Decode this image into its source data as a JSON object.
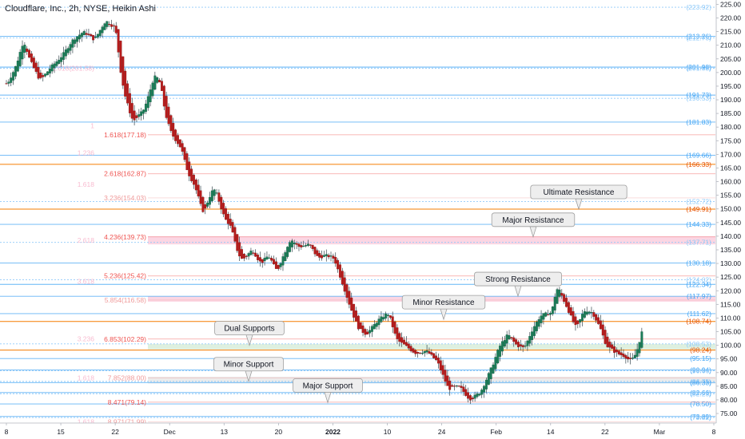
{
  "title": "Cloudflare, Inc., 2h, NYSE, Heikin Ashi",
  "chart_data": {
    "type": "candlestick",
    "chart_style": "Heikin Ashi",
    "symbol": "Cloudflare, Inc.",
    "interval": "2h",
    "exchange": "NYSE",
    "y_axis_side": "right",
    "ylim": [
      71.5,
      226
    ],
    "y_ticks": [
      75,
      80,
      85,
      90,
      95,
      100,
      105,
      110,
      115,
      120,
      125,
      130,
      135,
      140,
      145,
      150,
      155,
      160,
      165,
      170,
      175,
      180,
      185,
      190,
      195,
      200,
      205,
      210,
      215,
      220,
      225
    ],
    "x_ticks": [
      {
        "label": "8",
        "t": 0
      },
      {
        "label": "15",
        "t": 1
      },
      {
        "label": "22",
        "t": 2
      },
      {
        "label": "Dec",
        "t": 3
      },
      {
        "label": "13",
        "t": 4
      },
      {
        "label": "20",
        "t": 5
      },
      {
        "label": "2022",
        "t": 6
      },
      {
        "label": "10",
        "t": 7
      },
      {
        "label": "24",
        "t": 8
      },
      {
        "label": "Feb",
        "t": 9
      },
      {
        "label": "14",
        "t": 10
      },
      {
        "label": "22",
        "t": 11
      },
      {
        "label": "Mar",
        "t": 12
      },
      {
        "label": "8",
        "t": 13
      }
    ],
    "price_path": [
      [
        0.0,
        196
      ],
      [
        0.15,
        202
      ],
      [
        0.3,
        212
      ],
      [
        0.4,
        205
      ],
      [
        0.6,
        197
      ],
      [
        0.8,
        202
      ],
      [
        1.0,
        206
      ],
      [
        1.2,
        212
      ],
      [
        1.4,
        215
      ],
      [
        1.6,
        212
      ],
      [
        1.8,
        219
      ],
      [
        2.0,
        216
      ],
      [
        2.05,
        204
      ],
      [
        2.15,
        192
      ],
      [
        2.3,
        182
      ],
      [
        2.5,
        186
      ],
      [
        2.6,
        192
      ],
      [
        2.7,
        199
      ],
      [
        2.8,
        197
      ],
      [
        2.9,
        185
      ],
      [
        3.0,
        178
      ],
      [
        3.2,
        172
      ],
      [
        3.3,
        164
      ],
      [
        3.45,
        158
      ],
      [
        3.6,
        148
      ],
      [
        3.7,
        154
      ],
      [
        3.8,
        158
      ],
      [
        3.9,
        152
      ],
      [
        4.0,
        146
      ],
      [
        4.1,
        144
      ],
      [
        4.2,
        136
      ],
      [
        4.3,
        131
      ],
      [
        4.5,
        135
      ],
      [
        4.65,
        130
      ],
      [
        4.8,
        133
      ],
      [
        4.95,
        127
      ],
      [
        5.05,
        132
      ],
      [
        5.2,
        139
      ],
      [
        5.35,
        136
      ],
      [
        5.55,
        137
      ],
      [
        5.7,
        132
      ],
      [
        5.85,
        133
      ],
      [
        6.0,
        132
      ],
      [
        6.2,
        120
      ],
      [
        6.3,
        114
      ],
      [
        6.45,
        106
      ],
      [
        6.6,
        104
      ],
      [
        6.8,
        109
      ],
      [
        7.0,
        112
      ],
      [
        7.15,
        102
      ],
      [
        7.3,
        100
      ],
      [
        7.5,
        97
      ],
      [
        7.7,
        98
      ],
      [
        7.9,
        94
      ],
      [
        8.1,
        84
      ],
      [
        8.3,
        85
      ],
      [
        8.5,
        80
      ],
      [
        8.7,
        83
      ],
      [
        8.9,
        92
      ],
      [
        9.05,
        100
      ],
      [
        9.2,
        104
      ],
      [
        9.35,
        100
      ],
      [
        9.5,
        99
      ],
      [
        9.65,
        106
      ],
      [
        9.8,
        111
      ],
      [
        10.0,
        112
      ],
      [
        10.1,
        122
      ],
      [
        10.3,
        113
      ],
      [
        10.45,
        106
      ],
      [
        10.6,
        113
      ],
      [
        10.75,
        112
      ],
      [
        10.9,
        106
      ],
      [
        11.0,
        100
      ],
      [
        11.2,
        97
      ],
      [
        11.35,
        96
      ],
      [
        11.45,
        94
      ],
      [
        11.55,
        97
      ],
      [
        11.7,
        108
      ]
    ],
    "fib_levels": [
      {
        "label": "1.618(177.18)",
        "value": 177.18,
        "color": "#ef5350"
      },
      {
        "label": "2.618(162.87)",
        "value": 162.87,
        "color": "#ef5350"
      },
      {
        "label": "3.236(154.03)",
        "value": 154.03,
        "color": "#ef9a9a"
      },
      {
        "label": "4.236(139.73)",
        "value": 139.73,
        "color": "#ef5350"
      },
      {
        "label": "5.236(125.42)",
        "value": 125.42,
        "color": "#ef5350"
      },
      {
        "label": "5.854(116.58)",
        "value": 116.58,
        "color": "#ef9a9a"
      },
      {
        "label": "6.853(102.29)",
        "value": 102.29,
        "color": "#ef5350"
      },
      {
        "label": "7.852(88.00)",
        "value": 88.0,
        "color": "#ef9a9a"
      },
      {
        "label": "8.471(79.14)",
        "value": 79.14,
        "color": "#ef5350"
      },
      {
        "label": "8.971(71.99)",
        "value": 71.99,
        "color": "#ef9a9a"
      }
    ],
    "fib_faint_labels": [
      {
        "label": "1.618(201.58)",
        "value": 201.58
      },
      {
        "label": "1",
        "value": 180.5
      },
      {
        "label": "1.236",
        "value": 170.5
      },
      {
        "label": "1.618",
        "value": 159.0
      },
      {
        "label": "2.618",
        "value": 138.5
      },
      {
        "label": "3.618",
        "value": 123.5
      },
      {
        "label": "3.236",
        "value": 102.3
      },
      {
        "label": "1.618",
        "value": 88.0
      },
      {
        "label": "1.618",
        "value": 72.0
      }
    ],
    "horizontal_lines": [
      {
        "label": "(223.92)",
        "value": 223.92,
        "color": "#90caf9"
      },
      {
        "label": "(213.26)",
        "value": 213.26,
        "color": "#64b5f6"
      },
      {
        "label": "(212.73)",
        "value": 212.73,
        "color": "#90caf9"
      },
      {
        "label": "(201.98)",
        "value": 201.98,
        "color": "#42a5f5"
      },
      {
        "label": "(201.53)",
        "value": 201.53,
        "color": "#90caf9"
      },
      {
        "label": "(191.73)",
        "value": 191.73,
        "color": "#64b5f6"
      },
      {
        "label": "(190.53)",
        "value": 190.53,
        "color": "#90caf9"
      },
      {
        "label": "(181.83)",
        "value": 181.83,
        "color": "#64b5f6"
      },
      {
        "label": "(169.66)",
        "value": 169.66,
        "color": "#64b5f6"
      },
      {
        "label": "(166.33)",
        "value": 166.33,
        "color": "#f57c00"
      },
      {
        "label": "(152.72)",
        "value": 152.72,
        "color": "#90caf9"
      },
      {
        "label": "(149.91)",
        "value": 149.91,
        "color": "#f57c00"
      },
      {
        "label": "(144.33)",
        "value": 144.33,
        "color": "#64b5f6"
      },
      {
        "label": "(137.71)",
        "value": 137.71,
        "color": "#90caf9"
      },
      {
        "label": "(130.18)",
        "value": 130.18,
        "color": "#64b5f6"
      },
      {
        "label": "(124.02)",
        "value": 124.02,
        "color": "#90caf9"
      },
      {
        "label": "(122.34)",
        "value": 122.34,
        "color": "#64b5f6"
      },
      {
        "label": "(117.97)",
        "value": 117.97,
        "color": "#64b5f6"
      },
      {
        "label": "(111.62)",
        "value": 111.62,
        "color": "#64b5f6"
      },
      {
        "label": "(108.74)",
        "value": 108.74,
        "color": "#f57c00"
      },
      {
        "label": "(100.53)",
        "value": 100.53,
        "color": "#90caf9"
      },
      {
        "label": "(98.24)",
        "value": 98.24,
        "color": "#f57c00"
      },
      {
        "label": "(95.15)",
        "value": 95.15,
        "color": "#64b5f6"
      },
      {
        "label": "(90.94)",
        "value": 90.94,
        "color": "#64b5f6"
      },
      {
        "label": "(90.66)",
        "value": 90.66,
        "color": "#90caf9"
      },
      {
        "label": "(86.75)",
        "value": 86.75,
        "color": "#90caf9"
      },
      {
        "label": "(86.33)",
        "value": 86.33,
        "color": "#64b5f6"
      },
      {
        "label": "(82.66)",
        "value": 82.66,
        "color": "#64b5f6"
      },
      {
        "label": "(82.25)",
        "value": 82.25,
        "color": "#90caf9"
      },
      {
        "label": "(78.50)",
        "value": 78.5,
        "color": "#64b5f6"
      },
      {
        "label": "(73.89)",
        "value": 73.89,
        "color": "#64b5f6"
      },
      {
        "label": "(73.52)",
        "value": 73.52,
        "color": "#90caf9"
      }
    ],
    "zones": [
      {
        "from": 137.0,
        "to": 140.0,
        "color": "#f8bbd0"
      },
      {
        "from": 116.0,
        "to": 118.0,
        "color": "#f8bbd0"
      },
      {
        "from": 98.5,
        "to": 100.5,
        "color": "#c8e6c9"
      },
      {
        "from": 86.0,
        "to": 88.5,
        "color": "#e0e0e0"
      }
    ],
    "annotations": [
      {
        "text": "Ultimate Resistance",
        "value": 149.91
      },
      {
        "text": "Major Resistance",
        "value": 139.73
      },
      {
        "text": "Strong Resistance",
        "value": 118.0
      },
      {
        "text": "Minor Resistance",
        "value": 109.5
      },
      {
        "text": "Dual Supports",
        "value": 100.0
      },
      {
        "text": "Minor Support",
        "value": 86.8
      },
      {
        "text": "Major Support",
        "value": 79.0
      }
    ],
    "colors": {
      "up": "#26a69a",
      "up_body": "#1b7d5a",
      "down": "#b71c1c",
      "wick": "#37474f",
      "orange": "#f57c00"
    }
  }
}
